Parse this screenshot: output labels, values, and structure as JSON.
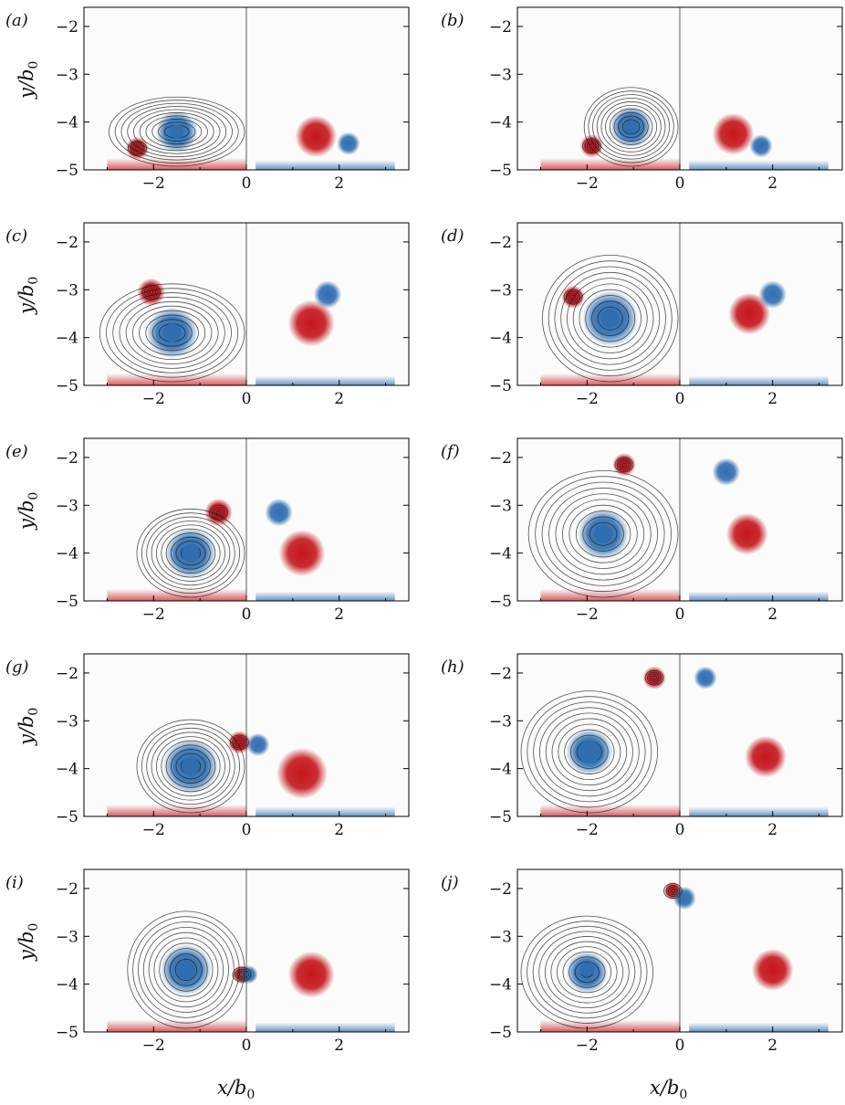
{
  "figure": {
    "axis_labels": {
      "y": {
        "main": "y/b",
        "sub": "0"
      },
      "x": {
        "main": "x/b",
        "sub": "0"
      }
    },
    "y_ticks": [
      "−2",
      "−3",
      "−4",
      "−5"
    ],
    "x_ticks": [
      "−2",
      "0",
      "2"
    ],
    "panels": [
      {
        "label": "(a)",
        "neg": [
          {
            "x": -1.5,
            "y": -4.2,
            "r": 0.45
          },
          {
            "x": 2.2,
            "y": -4.45,
            "r": 0.25
          }
        ],
        "pos": [
          {
            "x": -2.35,
            "y": -4.55,
            "r": 0.25
          },
          {
            "x": 1.5,
            "y": -4.3,
            "r": 0.45
          }
        ],
        "core": {
          "x": -1.5,
          "y": -4.2,
          "r": 0.15
        }
      },
      {
        "label": "(b)",
        "neg": [
          {
            "x": -1.05,
            "y": -4.1,
            "r": 0.45
          },
          {
            "x": 1.75,
            "y": -4.5,
            "r": 0.25
          }
        ],
        "pos": [
          {
            "x": -1.9,
            "y": -4.5,
            "r": 0.25
          },
          {
            "x": 1.15,
            "y": -4.25,
            "r": 0.45
          }
        ],
        "core": {
          "x": -1.05,
          "y": -4.1,
          "r": 0.15
        }
      },
      {
        "label": "(c)",
        "neg": [
          {
            "x": -1.6,
            "y": -3.9,
            "r": 0.55
          },
          {
            "x": 1.75,
            "y": -3.1,
            "r": 0.3
          }
        ],
        "pos": [
          {
            "x": -2.05,
            "y": -3.05,
            "r": 0.3
          },
          {
            "x": 1.4,
            "y": -3.7,
            "r": 0.5
          }
        ],
        "core": {
          "x": -1.6,
          "y": -3.9,
          "r": 0.2
        }
      },
      {
        "label": "(d)",
        "neg": [
          {
            "x": -1.5,
            "y": -3.6,
            "r": 0.6
          },
          {
            "x": 2.0,
            "y": -3.1,
            "r": 0.3
          }
        ],
        "pos": [
          {
            "x": -2.3,
            "y": -3.15,
            "r": 0.25
          },
          {
            "x": 1.5,
            "y": -3.5,
            "r": 0.45
          }
        ],
        "core": {
          "x": -1.5,
          "y": -3.6,
          "r": 0.2
        }
      },
      {
        "label": "(e)",
        "neg": [
          {
            "x": -1.2,
            "y": -4.0,
            "r": 0.55
          },
          {
            "x": 0.7,
            "y": -3.15,
            "r": 0.3
          }
        ],
        "pos": [
          {
            "x": -0.6,
            "y": -3.15,
            "r": 0.3
          },
          {
            "x": 1.2,
            "y": -4.0,
            "r": 0.5
          }
        ],
        "core": {
          "x": -1.2,
          "y": -4.0,
          "r": 0.2
        }
      },
      {
        "label": "(f)",
        "neg": [
          {
            "x": -1.65,
            "y": -3.6,
            "r": 0.55
          },
          {
            "x": 1.0,
            "y": -2.3,
            "r": 0.3
          }
        ],
        "pos": [
          {
            "x": -1.2,
            "y": -2.15,
            "r": 0.25
          },
          {
            "x": 1.45,
            "y": -3.6,
            "r": 0.45
          }
        ],
        "core": {
          "x": -1.65,
          "y": -3.6,
          "r": 0.2
        }
      },
      {
        "label": "(g)",
        "neg": [
          {
            "x": -1.2,
            "y": -3.95,
            "r": 0.6
          },
          {
            "x": 0.25,
            "y": -3.5,
            "r": 0.25
          }
        ],
        "pos": [
          {
            "x": -0.15,
            "y": -3.45,
            "r": 0.25
          },
          {
            "x": 1.2,
            "y": -4.1,
            "r": 0.55
          }
        ],
        "core": {
          "x": -1.2,
          "y": -3.95,
          "r": 0.2
        }
      },
      {
        "label": "(h)",
        "neg": [
          {
            "x": -1.95,
            "y": -3.65,
            "r": 0.5
          },
          {
            "x": 0.55,
            "y": -2.1,
            "r": 0.25
          }
        ],
        "pos": [
          {
            "x": -0.55,
            "y": -2.1,
            "r": 0.25
          },
          {
            "x": 1.85,
            "y": -3.75,
            "r": 0.45
          }
        ],
        "core": {
          "x": -1.95,
          "y": -3.65,
          "r": 0.25
        }
      },
      {
        "label": "(i)",
        "neg": [
          {
            "x": -1.3,
            "y": -3.7,
            "r": 0.55
          },
          {
            "x": 0.05,
            "y": -3.8,
            "r": 0.2
          }
        ],
        "pos": [
          {
            "x": -0.1,
            "y": -3.8,
            "r": 0.2
          },
          {
            "x": 1.4,
            "y": -3.8,
            "r": 0.5
          }
        ],
        "core": {
          "x": -1.3,
          "y": -3.7,
          "r": 0.2
        }
      },
      {
        "label": "(j)",
        "neg": [
          {
            "x": -2.0,
            "y": -3.75,
            "r": 0.45
          },
          {
            "x": 0.1,
            "y": -2.2,
            "r": 0.25
          }
        ],
        "pos": [
          {
            "x": -0.15,
            "y": -2.05,
            "r": 0.2
          },
          {
            "x": 2.0,
            "y": -3.7,
            "r": 0.45
          }
        ],
        "core": {
          "x": -2.0,
          "y": -3.7,
          "r": 0.15
        }
      }
    ],
    "colors": {
      "positive": "#c4161c",
      "negative": "#2f6eb0",
      "streamline": "#1a1a1a",
      "axis": "#000000"
    }
  },
  "chart_data": {
    "type": "heatmap",
    "xlim": [
      -3.5,
      3.5
    ],
    "ylim": [
      -5,
      -1.6
    ],
    "x_ticks": [
      -2,
      0,
      2
    ],
    "y_ticks": [
      -2,
      -3,
      -4,
      -5
    ],
    "xlabel": "x/b0",
    "ylabel": "y/b0",
    "panels": [
      "(a)",
      "(b)",
      "(c)",
      "(d)",
      "(e)",
      "(f)",
      "(g)",
      "(h)",
      "(i)",
      "(j)"
    ]
  }
}
